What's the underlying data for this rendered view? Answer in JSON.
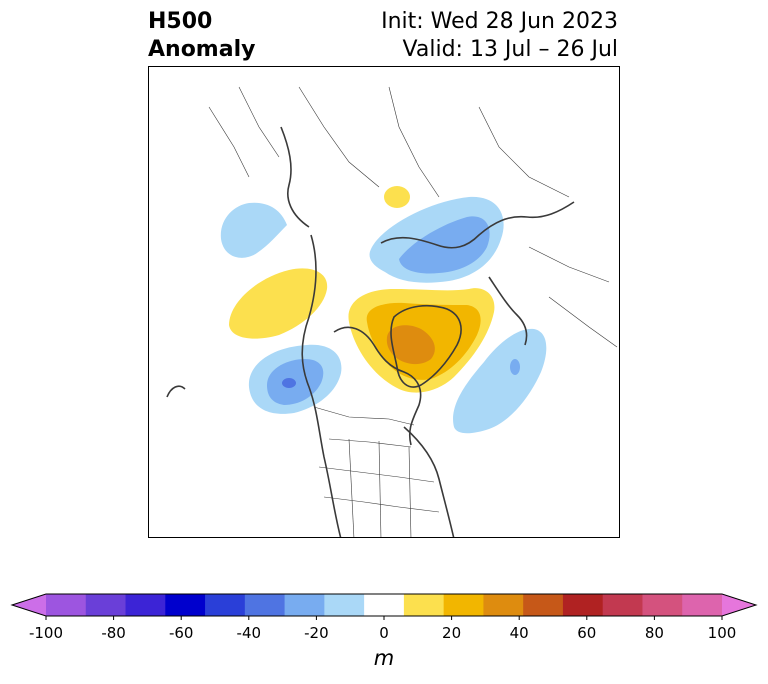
{
  "title": {
    "line1": "H500",
    "line2": "Anomaly",
    "init": "Init: Wed 28 Jun 2023",
    "valid": "Valid: 13 Jul – 26 Jul"
  },
  "map": {
    "projection": "north-polar-stereographic",
    "features": [
      "coastlines",
      "country-borders",
      "state-provinces"
    ],
    "anomalies": [
      {
        "region": "eastern-siberia-laptev",
        "sign": "negative",
        "peak_m": -30
      },
      {
        "region": "bering-chukchi",
        "sign": "negative",
        "peak_m": -20
      },
      {
        "region": "north-pacific-gulf-of-alaska",
        "sign": "negative",
        "peak_m": -30
      },
      {
        "region": "north-atlantic",
        "sign": "negative",
        "peak_m": -30
      },
      {
        "region": "greenland-canadian-archipelago",
        "sign": "positive",
        "peak_m": 50
      },
      {
        "region": "east-siberian-sea",
        "sign": "positive",
        "peak_m": 20
      },
      {
        "region": "central-siberia",
        "sign": "positive",
        "peak_m": 10
      }
    ]
  },
  "colorbar": {
    "unit": "m",
    "min": -100,
    "max": 100,
    "extend": "both",
    "ticks": [
      "-100",
      "-80",
      "-60",
      "-40",
      "-20",
      "0",
      "20",
      "40",
      "60",
      "80",
      "100"
    ],
    "colors": [
      "#cc6ee8",
      "#9d55e0",
      "#6a3fd8",
      "#3c24d6",
      "#0000cd",
      "#2a3fd8",
      "#4f74e2",
      "#78acf0",
      "#aad8f7",
      "#ffffff",
      "#fce04e",
      "#f2b600",
      "#de8c0f",
      "#c65818",
      "#b02222",
      "#c23950",
      "#d4527e",
      "#dd64ad",
      "#e676dc"
    ]
  }
}
